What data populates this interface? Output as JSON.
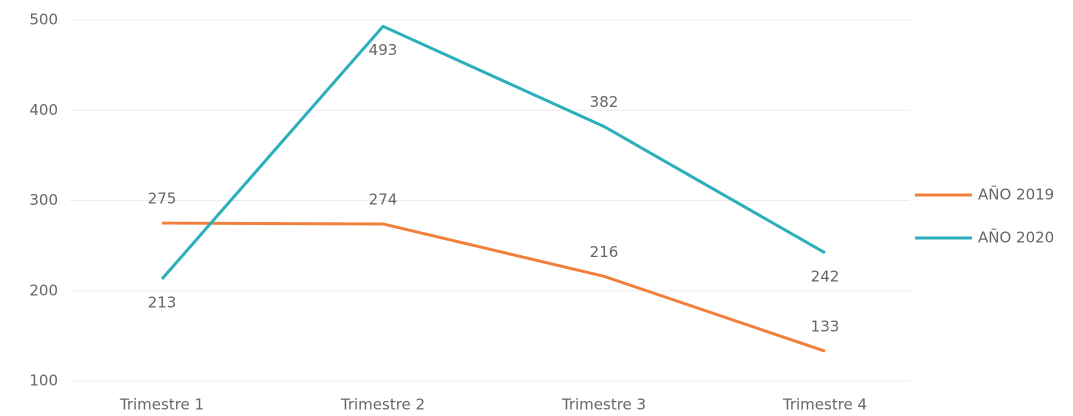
{
  "chart_data": {
    "type": "line",
    "categories": [
      "Trimestre 1",
      "Trimestre 2",
      "Trimestre 3",
      "Trimestre 4"
    ],
    "series": [
      {
        "name": "AÑO 2019",
        "color": "#f2803d",
        "values": [
          275,
          274,
          216,
          133
        ]
      },
      {
        "name": "AÑO 2020",
        "color": "#2ab0bb",
        "values": [
          213,
          493,
          382,
          242
        ]
      }
    ],
    "ylim": [
      100,
      500
    ],
    "yticks": [
      100,
      200,
      300,
      400,
      500
    ],
    "grid": true,
    "legend": "right"
  }
}
